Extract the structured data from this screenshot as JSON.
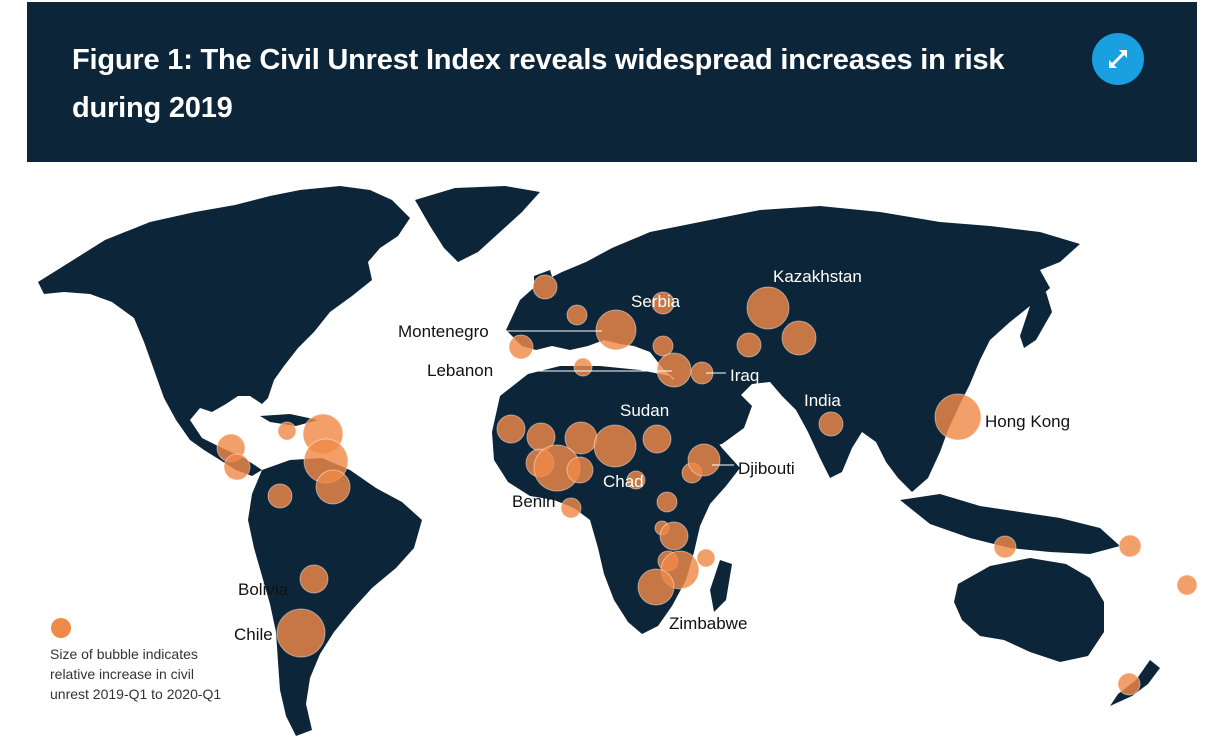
{
  "header": {
    "title": "Figure 1: The Civil Unrest Index reveals widespread increases in risk during 2019",
    "expand_icon": "expand-arrows-icon"
  },
  "colors": {
    "header_bg": "#0d2538",
    "land": "#0d2538",
    "ocean": "#ffffff",
    "bubble": "#f08a48",
    "accent_button": "#1a9fe0"
  },
  "map": {
    "labels": {
      "kazakhstan": "Kazakhstan",
      "serbia": "Serbia",
      "montenegro": "Montenegro",
      "lebanon": "Lebanon",
      "iraq": "Iraq",
      "sudan": "Sudan",
      "india": "India",
      "hong_kong": "Hong Kong",
      "djibouti": "Djibouti",
      "chad": "Chad",
      "benin": "Benin",
      "bolivia": "Bolivia",
      "chile": "Chile",
      "zimbabwe": "Zimbabwe"
    },
    "legend": {
      "line1": "Size of bubble indicates",
      "line2": "relative increase in civil",
      "line3": "unrest 2019-Q1 to 2020-Q1"
    }
  }
}
